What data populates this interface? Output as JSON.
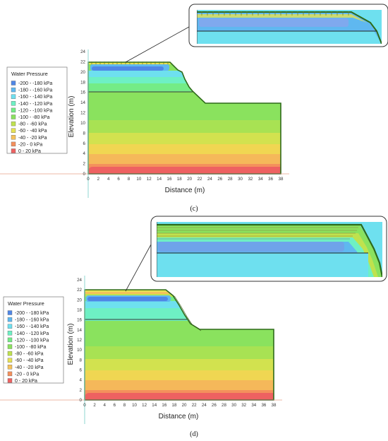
{
  "legend": {
    "title": "Water Pressure",
    "items": [
      {
        "label": "-200 - -180 kPa",
        "color": "#4f86e6"
      },
      {
        "label": "-180 - -160 kPa",
        "color": "#5fb8f0"
      },
      {
        "label": "-160 - -140 kPa",
        "color": "#6ee0ef"
      },
      {
        "label": "-140 - -120 kPa",
        "color": "#6ef0c4"
      },
      {
        "label": "-120 - -100 kPa",
        "color": "#74ec86"
      },
      {
        "label": "-100 - -80 kPa",
        "color": "#8ae25e"
      },
      {
        "label": "-80 - -60 kPa",
        "color": "#bfe24e"
      },
      {
        "label": "-60 - -40 kPa",
        "color": "#e7e253"
      },
      {
        "label": "-40 - -20 kPa",
        "color": "#f5c15b"
      },
      {
        "label": "-20 - 0 kPa",
        "color": "#f4905c"
      },
      {
        "label": "0 - 20 kPa",
        "color": "#ee6161"
      }
    ]
  },
  "axes": {
    "x_title": "Distance (m)",
    "y_title": "Elevation (m)",
    "x_ticks": [
      "0",
      "2",
      "4",
      "6",
      "8",
      "10",
      "12",
      "14",
      "16",
      "18",
      "20",
      "22",
      "24",
      "26",
      "28",
      "30",
      "32",
      "34",
      "36",
      "38"
    ],
    "y_ticks": [
      "0",
      "2",
      "4",
      "6",
      "8",
      "10",
      "12",
      "14",
      "16",
      "18",
      "20",
      "22",
      "24"
    ]
  },
  "panels": [
    {
      "caption": "(c)"
    },
    {
      "caption": "(d)"
    }
  ],
  "colors": {
    "outline": "#2e6b1a",
    "crest_line": "#3a3a3a",
    "ground_line": "#e9a08a",
    "vertical_line": "#8fd7d2",
    "callout_frame": "#333333"
  }
}
